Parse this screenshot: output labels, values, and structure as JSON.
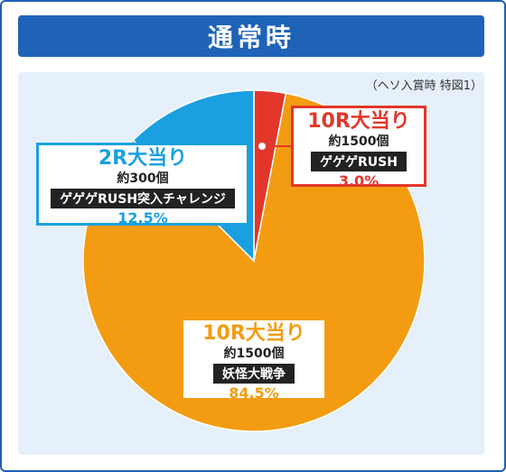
{
  "header": {
    "title": "通常時"
  },
  "note": "（ヘソ入賞時 特図1）",
  "chart_data": {
    "type": "pie",
    "title": "通常時",
    "slices": [
      {
        "label": "10R大当り",
        "count": "約1500個",
        "tag": "ゲゲゲRUSH",
        "value": 3.0,
        "display": "3.0%",
        "color": "#e3362b"
      },
      {
        "label": "10R大当り",
        "count": "約1500個",
        "tag": "妖怪大戦争",
        "value": 84.5,
        "display": "84.5%",
        "color": "#f39c12"
      },
      {
        "label": "2R大当り",
        "count": "約300個",
        "tag": "ゲゲゲRUSH突入チャレンジ",
        "value": 12.5,
        "display": "12.5%",
        "color": "#1aa0e0"
      }
    ]
  }
}
